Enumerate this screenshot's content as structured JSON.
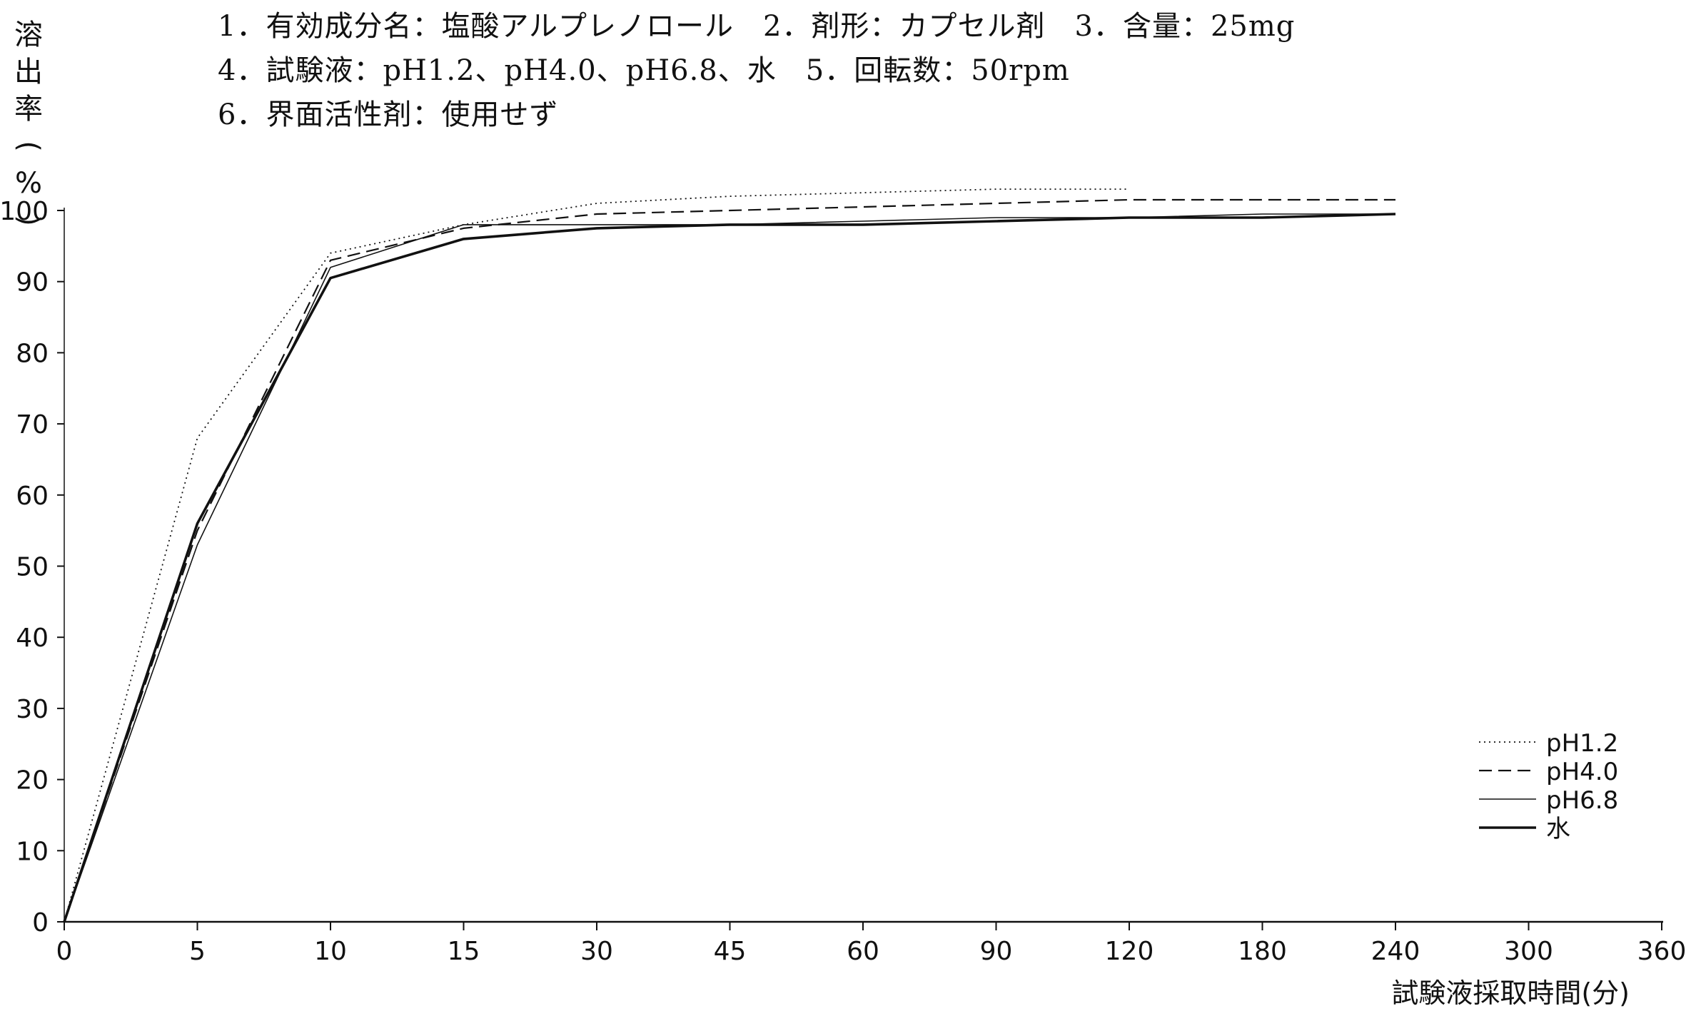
{
  "header": {
    "lines": [
      "1．有効成分名：塩酸アルプレノロール　2．剤形：カプセル剤　3．含量：25mg",
      "4．試験液：pH1.2、pH4.0、pH6.8、水　5．回転数：50rpm",
      "6．界面活性剤：使用せず"
    ]
  },
  "chart_data": {
    "type": "line",
    "xlabel": "試験液採取時間(分)",
    "ylabel": "溶出率(%)",
    "categories": [
      "0",
      "5",
      "10",
      "15",
      "30",
      "45",
      "60",
      "90",
      "120",
      "180",
      "240",
      "300",
      "360"
    ],
    "ylim": [
      0,
      100
    ],
    "yticks": [
      0,
      10,
      20,
      30,
      40,
      50,
      60,
      70,
      80,
      90,
      100
    ],
    "legend_position": "right",
    "grid": false,
    "series": [
      {
        "name": "pH1.2",
        "style": "dotted",
        "x": [
          0,
          5,
          10,
          15,
          30,
          45,
          60,
          90,
          120
        ],
        "values": [
          0,
          68,
          94,
          98,
          101,
          102,
          102.5,
          103,
          103
        ]
      },
      {
        "name": "pH4.0",
        "style": "dashed",
        "x": [
          0,
          5,
          10,
          15,
          30,
          45,
          60,
          90,
          120,
          180,
          240
        ],
        "values": [
          0,
          55,
          93,
          97.5,
          99.5,
          100,
          100.5,
          101,
          101.5,
          101.5,
          101.5
        ]
      },
      {
        "name": "pH6.8",
        "style": "thin-solid",
        "x": [
          0,
          5,
          10,
          15,
          30,
          45,
          60,
          90,
          120,
          180,
          240
        ],
        "values": [
          0,
          53,
          92,
          98,
          98,
          98,
          98.5,
          99,
          99,
          99.5,
          99.5
        ]
      },
      {
        "name": "水",
        "style": "thick-solid",
        "x": [
          0,
          5,
          10,
          15,
          30,
          45,
          60,
          90,
          120,
          180,
          240
        ],
        "values": [
          0,
          56,
          90.5,
          96,
          97.5,
          98,
          98,
          98.5,
          99,
          99,
          99.5
        ]
      }
    ]
  }
}
